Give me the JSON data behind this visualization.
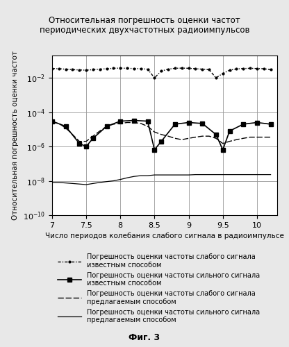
{
  "title": "Относительная погрешность оценки частот\nпериодических двухчастотных радиоимпульсов",
  "xlabel": "Число периодов колебания слабого сигнала в радиоимпульсе",
  "ylabel": "Относительная погрешность оценки частот",
  "fig_label": "Фиг. 3",
  "xlim": [
    7,
    10.3
  ],
  "xticks": [
    7,
    7.5,
    8,
    8.5,
    9,
    9.5,
    10
  ],
  "yticks_exp": [
    -10,
    -8,
    -6,
    -4,
    -2
  ],
  "line1_x": [
    7.0,
    7.1,
    7.2,
    7.3,
    7.4,
    7.5,
    7.6,
    7.7,
    7.8,
    7.9,
    8.0,
    8.1,
    8.2,
    8.3,
    8.4,
    8.5,
    8.6,
    8.7,
    8.8,
    8.9,
    9.0,
    9.1,
    9.2,
    9.3,
    9.4,
    9.5,
    9.6,
    9.7,
    9.8,
    9.9,
    10.0,
    10.1,
    10.2
  ],
  "line1_y": [
    0.035,
    0.034,
    0.032,
    0.03,
    0.029,
    0.028,
    0.03,
    0.032,
    0.034,
    0.036,
    0.037,
    0.036,
    0.035,
    0.034,
    0.032,
    0.01,
    0.025,
    0.032,
    0.036,
    0.037,
    0.036,
    0.034,
    0.032,
    0.03,
    0.01,
    0.018,
    0.028,
    0.033,
    0.035,
    0.036,
    0.035,
    0.034,
    0.03
  ],
  "line2_x": [
    7.0,
    7.2,
    7.4,
    7.5,
    7.6,
    7.8,
    8.0,
    8.2,
    8.4,
    8.5,
    8.6,
    8.8,
    9.0,
    9.2,
    9.4,
    9.5,
    9.6,
    9.8,
    10.0,
    10.2
  ],
  "line2_y": [
    3e-05,
    1.5e-05,
    1.5e-06,
    1e-06,
    3e-06,
    1.5e-05,
    3e-05,
    3.3e-05,
    3e-05,
    6.5e-07,
    2e-06,
    2e-05,
    2.5e-05,
    2.2e-05,
    5e-06,
    6.5e-07,
    8e-06,
    2e-05,
    2.5e-05,
    2e-05
  ],
  "line3_x": [
    7.0,
    7.1,
    7.2,
    7.3,
    7.4,
    7.5,
    7.6,
    7.7,
    7.8,
    7.9,
    8.0,
    8.1,
    8.2,
    8.3,
    8.4,
    8.5,
    8.6,
    8.7,
    8.8,
    8.9,
    9.0,
    9.1,
    9.2,
    9.3,
    9.4,
    9.5,
    9.6,
    9.7,
    9.8,
    9.9,
    10.0,
    10.1,
    10.2
  ],
  "line3_y": [
    2.5e-05,
    2.2e-05,
    1.2e-05,
    5e-06,
    2e-06,
    2e-06,
    4e-06,
    8e-06,
    1.5e-05,
    2e-05,
    2.2e-05,
    2.5e-05,
    2.5e-05,
    2.2e-05,
    1.5e-05,
    7e-06,
    5e-06,
    4e-06,
    3e-06,
    2.5e-06,
    3e-06,
    3.5e-06,
    4e-06,
    4e-06,
    3e-06,
    1.5e-06,
    2e-06,
    2.5e-06,
    3e-06,
    3.5e-06,
    3.5e-06,
    3.5e-06,
    3.5e-06
  ],
  "line4_x": [
    7.0,
    7.1,
    7.2,
    7.3,
    7.4,
    7.5,
    7.6,
    7.7,
    7.8,
    7.9,
    8.0,
    8.1,
    8.2,
    8.3,
    8.4,
    8.5,
    8.6,
    8.7,
    8.8,
    8.9,
    9.0,
    9.1,
    9.2,
    9.3,
    9.4,
    9.5,
    9.6,
    9.7,
    9.8,
    9.9,
    10.0,
    10.1,
    10.2
  ],
  "line4_y": [
    8e-09,
    8e-09,
    7.5e-09,
    7e-09,
    6.5e-09,
    6e-09,
    7e-09,
    8e-09,
    9e-09,
    1e-08,
    1.2e-08,
    1.5e-08,
    1.8e-08,
    2e-08,
    2e-08,
    2.2e-08,
    2.2e-08,
    2.2e-08,
    2.2e-08,
    2.2e-08,
    2.2e-08,
    2.3e-08,
    2.3e-08,
    2.3e-08,
    2.3e-08,
    2.3e-08,
    2.3e-08,
    2.3e-08,
    2.3e-08,
    2.3e-08,
    2.3e-08,
    2.3e-08,
    2.3e-08
  ],
  "legend_entries": [
    "Погрешность оценки частоты слабого сигнала\nизвестным способом",
    "Погрешность оценки частоты сильного сигнала\nизвестным способом",
    "Погрешность оценки частоты слабого сигнала\nпредлагаемым способом",
    "Погрешность оценки частоты сильного сигнала\nпредлагаемым способом"
  ],
  "bg_color": "#e8e8e8",
  "plot_bg_color": "#ffffff",
  "line_color": "#000000",
  "grid_color": "#999999"
}
